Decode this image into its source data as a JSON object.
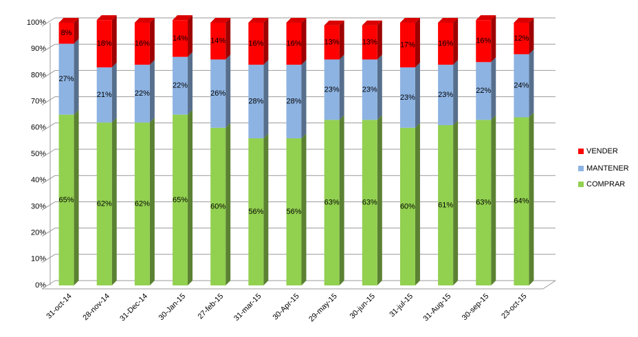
{
  "chart_data": {
    "type": "stacked-bar-3d",
    "categories": [
      "31-oct-14",
      "28-nov-14",
      "31-Dec-14",
      "30-Jan-15",
      "27-feb-15",
      "31-mar-15",
      "30-Apr-15",
      "29-may-15",
      "30-jun-15",
      "31-jul-15",
      "31-Aug-15",
      "30-sep-15",
      "23-oct-15"
    ],
    "series": [
      {
        "name": "COMPRAR",
        "color": "#92d050",
        "values": [
          65,
          62,
          62,
          65,
          60,
          56,
          56,
          63,
          63,
          60,
          61,
          63,
          64
        ],
        "value_labels": [
          "65%",
          "62%",
          "62%",
          "65%",
          "60%",
          "56%",
          "56%",
          "63%",
          "63%",
          "60%",
          "61%",
          "63%",
          "64%"
        ]
      },
      {
        "name": "MANTENER",
        "color": "#8db3e2",
        "values": [
          27,
          21,
          22,
          22,
          26,
          28,
          28,
          23,
          23,
          23,
          23,
          22,
          24
        ],
        "value_labels": [
          "27%",
          "21%",
          "22%",
          "22%",
          "26%",
          "28%",
          "28%",
          "23%",
          "23%",
          "23%",
          "23%",
          "22%",
          "24%"
        ]
      },
      {
        "name": "VENDER",
        "color": "#ff0000",
        "values": [
          8,
          18,
          16,
          14,
          14,
          16,
          16,
          13,
          13,
          17,
          16,
          16,
          12
        ],
        "value_labels": [
          "8%",
          "18%",
          "16%",
          "14%",
          "14%",
          "16%",
          "16%",
          "13%",
          "13%",
          "17%",
          "16%",
          "16%",
          "12%"
        ]
      }
    ],
    "ylim": [
      0,
      100
    ],
    "yticks": [
      {
        "value": 0,
        "label": "0%"
      },
      {
        "value": 10,
        "label": "10%"
      },
      {
        "value": 20,
        "label": "20%"
      },
      {
        "value": 30,
        "label": "30%"
      },
      {
        "value": 40,
        "label": "40%"
      },
      {
        "value": 50,
        "label": "50%"
      },
      {
        "value": 60,
        "label": "60%"
      },
      {
        "value": 70,
        "label": "70%"
      },
      {
        "value": 80,
        "label": "80%"
      },
      {
        "value": 90,
        "label": "90%"
      },
      {
        "value": 100,
        "label": "100%"
      }
    ],
    "grid": true
  }
}
